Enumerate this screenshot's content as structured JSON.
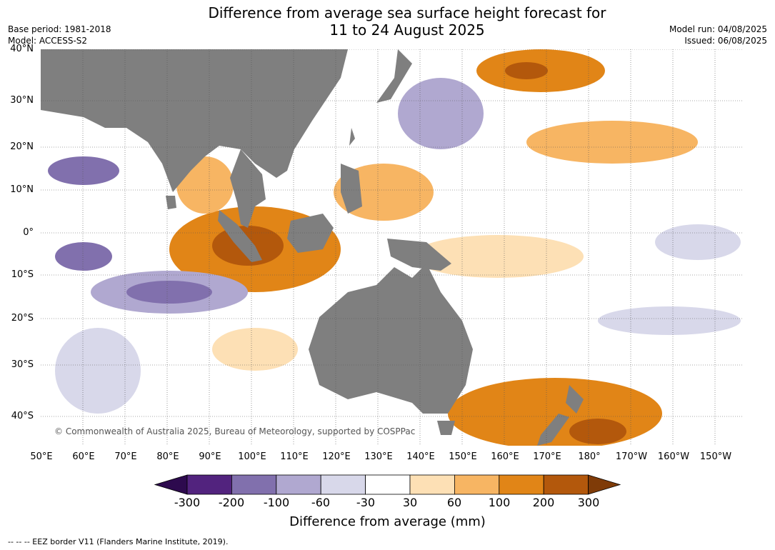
{
  "title": {
    "line1": "Difference from average sea surface height forecast for",
    "line2": "11 to 24 August 2025"
  },
  "meta_left": {
    "base_period": "Base period: 1981-2018",
    "model": "Model: ACCESS-S2"
  },
  "meta_right": {
    "model_run": "Model run: 04/08/2025",
    "issued": "Issued: 06/08/2025"
  },
  "map": {
    "land_color": "#7f7f7f",
    "lat_labels": [
      "40°N",
      "30°N",
      "20°N",
      "10°N",
      "0°",
      "10°S",
      "20°S",
      "30°S",
      "40°S"
    ],
    "lon_labels": [
      "50°E",
      "60°E",
      "70°E",
      "80°E",
      "90°E",
      "100°E",
      "110°E",
      "120°E",
      "130°E",
      "140°E",
      "150°E",
      "160°E",
      "170°E",
      "180°",
      "170°W",
      "160°W",
      "150°W"
    ],
    "copyright": "© Commonwealth of Australia 2025, Bureau of Meteorology, supported by COSPPac"
  },
  "colorbar": {
    "ticks": [
      "-300",
      "-200",
      "-100",
      "-60",
      "-30",
      "30",
      "60",
      "100",
      "200",
      "300"
    ],
    "colors": [
      "#52237e",
      "#8170ad",
      "#b0a8d0",
      "#d8d8ea",
      "#ffffff",
      "#fde0b5",
      "#f7b563",
      "#e18517",
      "#b3580c"
    ],
    "under_color": "#2d0a4e",
    "over_color": "#7f3b08",
    "title": "Difference from average (mm)"
  },
  "footnote": "--  --  -- EEZ border V11 (Flanders Marine Institute, 2019)."
}
